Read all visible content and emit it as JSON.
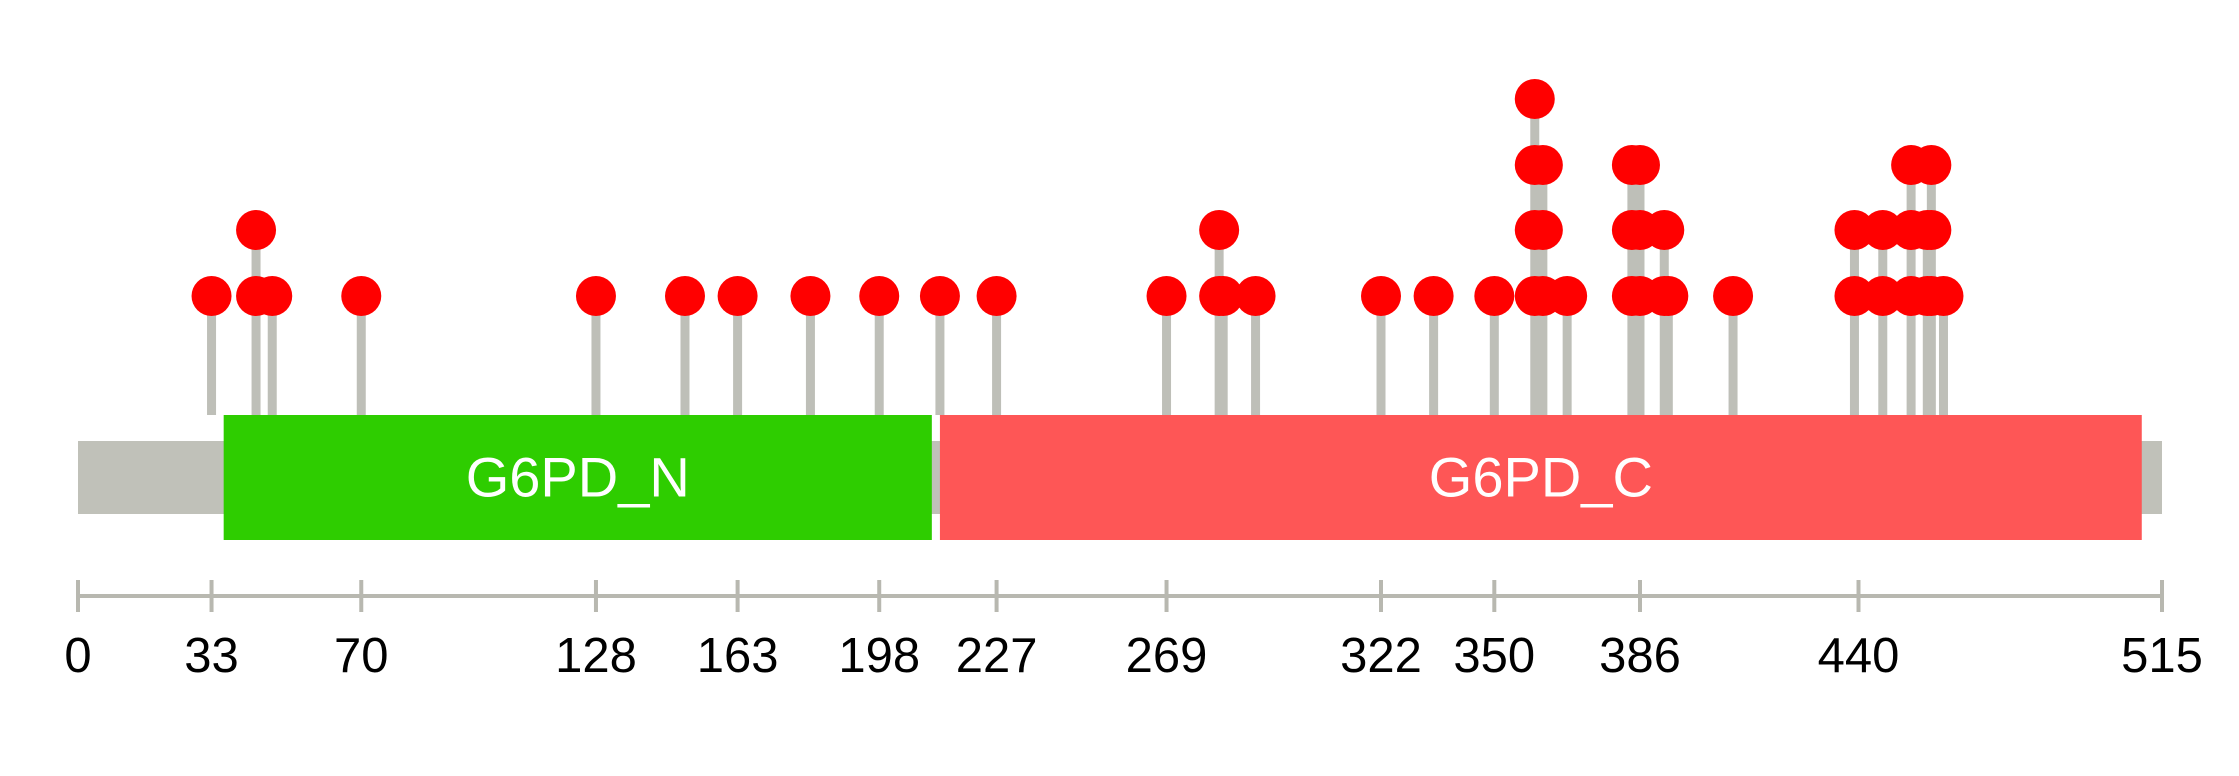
{
  "chart_data": {
    "type": "lollipop",
    "title": "",
    "xlabel": "",
    "ylabel": "",
    "protein_length": 515,
    "xlim": [
      0,
      515
    ],
    "grid": false,
    "ticks": [
      0,
      33,
      70,
      128,
      163,
      198,
      227,
      269,
      322,
      350,
      386,
      440,
      515
    ],
    "domains": [
      {
        "name": "G6PD_N",
        "start": 36,
        "end": 211,
        "color": "#2ecd00"
      },
      {
        "name": "G6PD_C",
        "start": 213,
        "end": 510,
        "color": "#fe5656"
      }
    ],
    "mutations": [
      {
        "position": 33,
        "count": 1
      },
      {
        "position": 44,
        "count": 2
      },
      {
        "position": 48,
        "count": 1
      },
      {
        "position": 70,
        "count": 1
      },
      {
        "position": 128,
        "count": 1
      },
      {
        "position": 150,
        "count": 1
      },
      {
        "position": 163,
        "count": 1
      },
      {
        "position": 181,
        "count": 1
      },
      {
        "position": 198,
        "count": 1
      },
      {
        "position": 213,
        "count": 1
      },
      {
        "position": 227,
        "count": 1
      },
      {
        "position": 269,
        "count": 1
      },
      {
        "position": 282,
        "count": 2
      },
      {
        "position": 283,
        "count": 1
      },
      {
        "position": 291,
        "count": 1
      },
      {
        "position": 322,
        "count": 1
      },
      {
        "position": 335,
        "count": 1
      },
      {
        "position": 350,
        "count": 1
      },
      {
        "position": 360,
        "count": 4
      },
      {
        "position": 362,
        "count": 3
      },
      {
        "position": 368,
        "count": 1
      },
      {
        "position": 384,
        "count": 3
      },
      {
        "position": 386,
        "count": 3
      },
      {
        "position": 392,
        "count": 2
      },
      {
        "position": 393,
        "count": 1
      },
      {
        "position": 409,
        "count": 1
      },
      {
        "position": 439,
        "count": 2
      },
      {
        "position": 446,
        "count": 2
      },
      {
        "position": 453,
        "count": 3
      },
      {
        "position": 457,
        "count": 2
      },
      {
        "position": 458,
        "count": 3
      },
      {
        "position": 461,
        "count": 1
      }
    ],
    "colors": {
      "backbone": "#c0c1b9",
      "stem": "#bebfb8",
      "head": "#ff0000",
      "axis": "#b8b8b0"
    }
  }
}
